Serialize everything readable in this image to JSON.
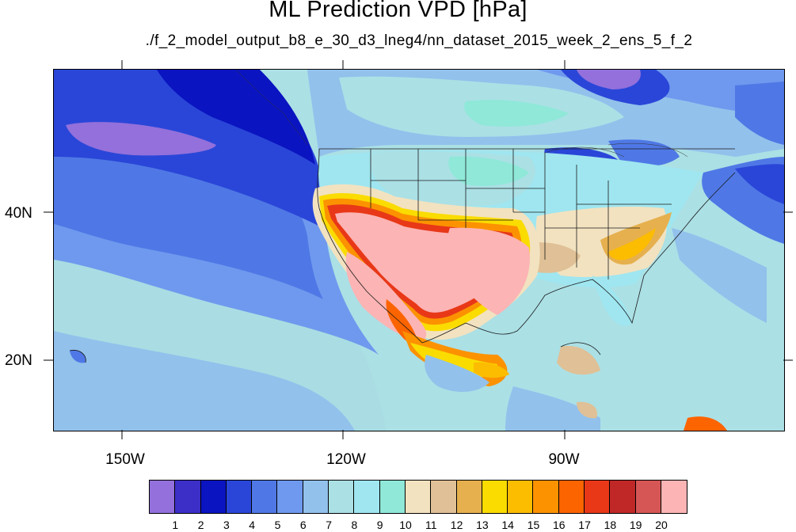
{
  "title": "ML Prediction VPD [hPa]",
  "subtitle": "./f_2_model_output_b8_e_30_d3_lneg4/nn_dataset_2015_week_2_ens_5_f_2",
  "longitude_labels": [
    "150W",
    "120W",
    "90W"
  ],
  "latitude_labels": [
    "40N",
    "20N"
  ],
  "colorbar": {
    "levels": [
      "1",
      "2",
      "3",
      "4",
      "5",
      "6",
      "7",
      "8",
      "9",
      "10",
      "11",
      "12",
      "13",
      "14",
      "15",
      "16",
      "17",
      "18",
      "19",
      "20"
    ],
    "colors": [
      "#9370db",
      "#3c2fc8",
      "#0a14c0",
      "#2a46d8",
      "#4f78e6",
      "#6f99ee",
      "#92c1ec",
      "#abe0e5",
      "#9fe6f0",
      "#8fe8d8",
      "#f2e2c0",
      "#e0c096",
      "#e6b04e",
      "#fadc00",
      "#fcbc00",
      "#fc9200",
      "#fc6400",
      "#e83818",
      "#c02828",
      "#d65656",
      "#fcb4b4"
    ]
  }
}
